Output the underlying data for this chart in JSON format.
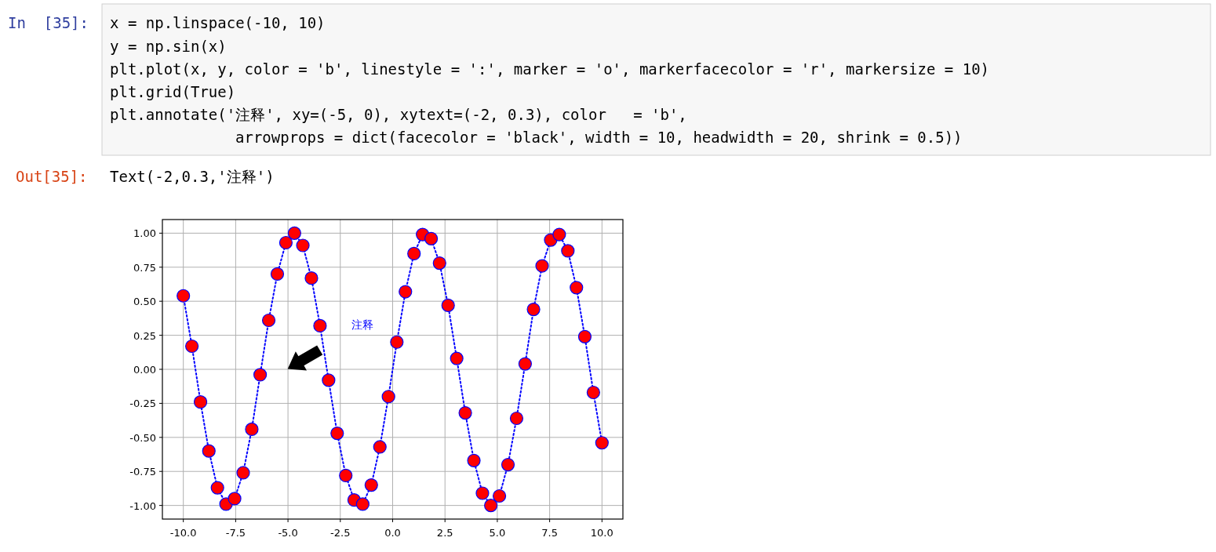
{
  "chart_data": {
    "type": "line",
    "x": [
      -10,
      -9.59,
      -9.18,
      -8.78,
      -8.37,
      -7.96,
      -7.55,
      -7.14,
      -6.73,
      -6.33,
      -5.92,
      -5.51,
      -5.1,
      -4.69,
      -4.29,
      -3.88,
      -3.47,
      -3.06,
      -2.65,
      -2.24,
      -1.84,
      -1.43,
      -1.02,
      -0.61,
      -0.2,
      0.2,
      0.61,
      1.02,
      1.43,
      1.84,
      2.24,
      2.65,
      3.06,
      3.47,
      3.88,
      4.29,
      4.69,
      5.1,
      5.51,
      5.92,
      6.33,
      6.73,
      7.14,
      7.55,
      7.96,
      8.37,
      8.78,
      9.18,
      9.59,
      10
    ],
    "series": [
      {
        "color": "#0000ff",
        "colors": [
          "#ff0000",
          "#ff0000",
          "#ff0000",
          "#ff0000",
          "#ff0000",
          "#ff0000",
          "#ff0000",
          "#ff0000",
          "#ff0000",
          "#ff0000",
          "#ff0000",
          "#ff0000",
          "#ff0000",
          "#ff0000",
          "#ff0000",
          "#ff0000",
          "#ff0000",
          "#ff0000",
          "#ff0000",
          "#ff0000",
          "#ff0000",
          "#ff0000",
          "#ff0000",
          "#ff0000",
          "#ff0000",
          "#ff0000",
          "#ff0000",
          "#ff0000",
          "#ff0000",
          "#ff0000",
          "#ff0000",
          "#ff0000",
          "#ff0000",
          "#ff0000",
          "#ff0000",
          "#ff0000",
          "#ff0000",
          "#ff0000",
          "#ff0000",
          "#ff0000",
          "#ff0000",
          "#ff0000",
          "#ff0000",
          "#ff0000",
          "#ff0000",
          "#ff0000",
          "#ff0000",
          "#ff0000",
          "#ff0000",
          "#ff0000"
        ],
        "values": [
          0.54,
          0.17,
          -0.24,
          -0.6,
          -0.87,
          -0.99,
          -0.95,
          -0.76,
          -0.44,
          -0.04,
          0.36,
          0.7,
          0.93,
          1.0,
          0.91,
          0.67,
          0.32,
          -0.08,
          -0.47,
          -0.78,
          -0.96,
          -0.99,
          -0.85,
          -0.57,
          -0.2,
          0.2,
          0.57,
          0.85,
          0.99,
          0.96,
          0.78,
          0.47,
          0.08,
          -0.32,
          -0.67,
          -0.91,
          -1.0,
          -0.93,
          -0.7,
          -0.36,
          0.04,
          0.44,
          0.76,
          0.95,
          0.99,
          0.87,
          0.6,
          0.24,
          -0.17,
          -0.54
        ]
      }
    ],
    "xlim": [
      -11,
      11
    ],
    "ylim": [
      -1.1,
      1.1
    ],
    "xticks": [
      {
        "value": -10,
        "label": "-10.0"
      },
      {
        "value": -7.5,
        "label": "-7.5"
      },
      {
        "value": -5,
        "label": "-5.0"
      },
      {
        "value": -2.5,
        "label": "-2.5"
      },
      {
        "value": 0,
        "label": "0.0"
      },
      {
        "value": 2.5,
        "label": "2.5"
      },
      {
        "value": 5,
        "label": "5.0"
      },
      {
        "value": 7.5,
        "label": "7.5"
      },
      {
        "value": 10,
        "label": "10.0"
      }
    ],
    "yticks": [
      {
        "value": -1,
        "label": "-1.00"
      },
      {
        "value": -0.75,
        "label": "-0.75"
      },
      {
        "value": -0.5,
        "label": "-0.50"
      },
      {
        "value": -0.25,
        "label": "-0.25"
      },
      {
        "value": 0,
        "label": "0.00"
      },
      {
        "value": 0.25,
        "label": "0.25"
      },
      {
        "value": 0.5,
        "label": "0.50"
      },
      {
        "value": 0.75,
        "label": "0.75"
      },
      {
        "value": 1,
        "label": "1.00"
      }
    ],
    "grid": true,
    "marker": "circle",
    "line_style": "dotted",
    "annotations": [
      "注释",
      "In  [35]:",
      "x = np.linspace(-10, 10)",
      "y = np.sin(x)",
      "plt.plot(x, y, color = 'b', linestyle = ':', marker = 'o', markerfacecolor = 'r', markersize = 10)",
      "plt.grid(True)",
      "plt.annotate('注释', xy=(-5, 0), xytext=(-2, 0.3), color   = 'b',",
      "arrowprops = dict(facecolor = 'black', width = 10, headwidth = 20, shrink = 0.5))",
      "Out[35]:",
      "Text(-2,0.3,'注释')"
    ]
  }
}
